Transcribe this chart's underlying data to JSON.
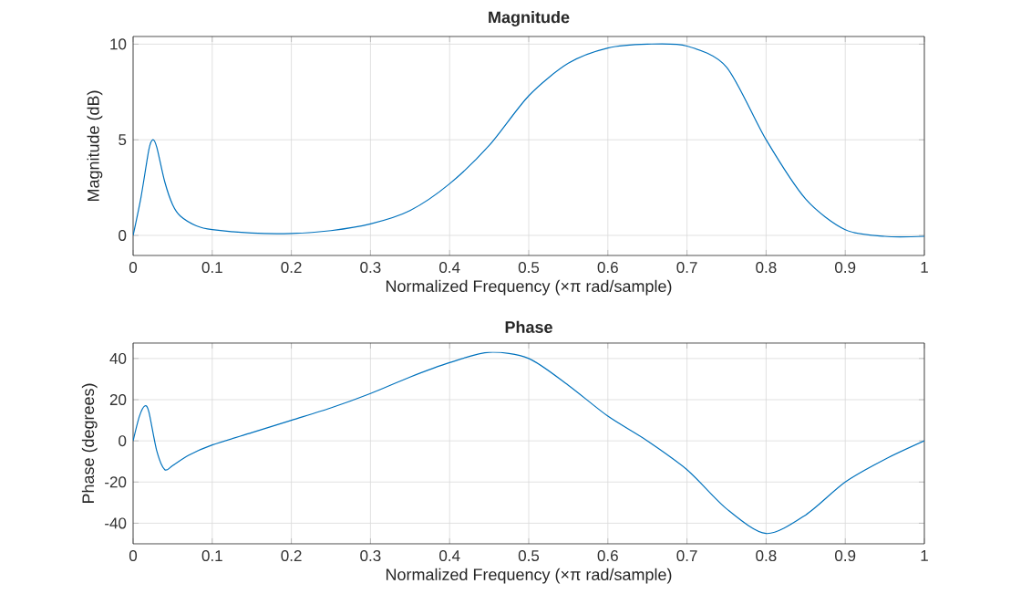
{
  "chart_data": [
    {
      "type": "line",
      "title": "Magnitude",
      "xlabel": "Normalized Frequency  (×π rad/sample)",
      "ylabel": "Magnitude (dB)",
      "xlim": [
        0,
        1
      ],
      "ylim": [
        -1.05,
        10.4
      ],
      "xticks": [
        0,
        0.1,
        0.2,
        0.3,
        0.4,
        0.5,
        0.6,
        0.7,
        0.8,
        0.9,
        1
      ],
      "yticks": [
        0,
        5,
        10
      ],
      "grid": true,
      "x": [
        0,
        0.01,
        0.02,
        0.025,
        0.03,
        0.04,
        0.05,
        0.06,
        0.08,
        0.1,
        0.15,
        0.2,
        0.25,
        0.3,
        0.35,
        0.4,
        0.45,
        0.5,
        0.55,
        0.6,
        0.65,
        0.7,
        0.75,
        0.8,
        0.85,
        0.9,
        0.95,
        1
      ],
      "series": [
        {
          "color": "#0072bd",
          "values": [
            0,
            2.0,
            4.5,
            5.0,
            4.6,
            2.8,
            1.6,
            1.0,
            0.5,
            0.3,
            0.12,
            0.1,
            0.25,
            0.6,
            1.3,
            2.7,
            4.7,
            7.3,
            9.0,
            9.8,
            10,
            9.9,
            8.8,
            5.0,
            1.9,
            0.3,
            -0.05,
            -0.05
          ]
        }
      ]
    },
    {
      "type": "line",
      "title": "Phase",
      "xlabel": "Normalized Frequency  (×π rad/sample)",
      "ylabel": "Phase (degrees)",
      "xlim": [
        0,
        1
      ],
      "ylim": [
        -50,
        47.5
      ],
      "xticks": [
        0,
        0.1,
        0.2,
        0.3,
        0.4,
        0.5,
        0.6,
        0.7,
        0.8,
        0.9,
        1
      ],
      "yticks": [
        -40,
        -20,
        0,
        20,
        40
      ],
      "grid": true,
      "x": [
        0,
        0.008,
        0.015,
        0.02,
        0.03,
        0.04,
        0.05,
        0.07,
        0.1,
        0.15,
        0.2,
        0.25,
        0.3,
        0.35,
        0.4,
        0.45,
        0.5,
        0.55,
        0.6,
        0.65,
        0.7,
        0.75,
        0.8,
        0.85,
        0.9,
        0.95,
        1
      ],
      "series": [
        {
          "color": "#0072bd",
          "values": [
            0,
            12,
            17,
            14,
            -5,
            -14,
            -12,
            -7,
            -2,
            4,
            10,
            16,
            23,
            31,
            38,
            43,
            40,
            27,
            12,
            0,
            -14,
            -33,
            -45,
            -36,
            -20,
            -9,
            0
          ]
        }
      ]
    }
  ]
}
